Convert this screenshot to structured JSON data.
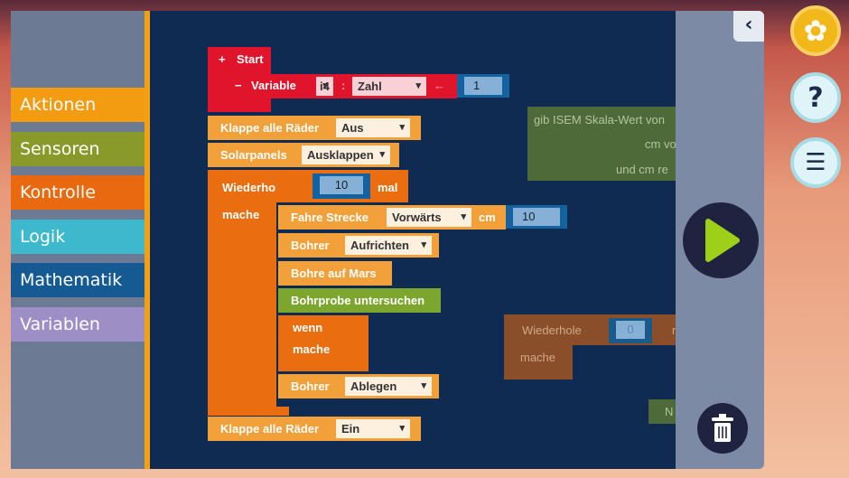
{
  "categories": [
    {
      "label": "Aktionen",
      "color": "#f39c12"
    },
    {
      "label": "Sensoren",
      "color": "#8a9a2a"
    },
    {
      "label": "Kontrolle",
      "color": "#e8690f"
    },
    {
      "label": "Logik",
      "color": "#3db8cc"
    },
    {
      "label": "Mathematik",
      "color": "#165a94"
    },
    {
      "label": "Variablen",
      "color": "#9d8fc6"
    }
  ],
  "blocks": {
    "start": {
      "plus": "+",
      "label": "Start"
    },
    "variable": {
      "minus": "−",
      "label": "Variable",
      "name": "i4",
      "colon": ":",
      "type": "Zahl",
      "arrow": "←",
      "value": "1"
    },
    "wheels1": {
      "label": "Klappe alle Räder",
      "value": "Aus"
    },
    "solar": {
      "label": "Solarpanels",
      "value": "Ausklappen"
    },
    "repeat": {
      "label": "Wiederhole",
      "count": "10",
      "suffix": "mal",
      "do": "mache"
    },
    "drive": {
      "label": "Fahre Strecke",
      "direction": "Vorwärts",
      "unit": "cm",
      "value": "10"
    },
    "drill1": {
      "label": "Bohrer",
      "value": "Aufrichten"
    },
    "drillmars": {
      "label": "Bohre auf Mars"
    },
    "sample": {
      "label": "Bohrprobe untersuchen"
    },
    "if": {
      "label": "wenn",
      "do": "mache"
    },
    "drill2": {
      "label": "Bohrer",
      "value": "Ablegen"
    },
    "wheels2": {
      "label": "Klappe alle Räder",
      "value": "Ein"
    },
    "isem": {
      "line1": "gib ISEM Skala-Wert von",
      "line2": "cm vo",
      "line3": "und cm re"
    },
    "repeat2": {
      "label": "Wiederhole",
      "count": "0",
      "suffix": "m",
      "do": "mache"
    },
    "partial": {
      "label": "N"
    }
  },
  "icons": {
    "collapse": "chevron-left-icon",
    "settings": "gear-icon",
    "help": "question-icon",
    "tasks": "clipboard-list-icon",
    "run": "play-icon",
    "trash": "trash-icon"
  }
}
